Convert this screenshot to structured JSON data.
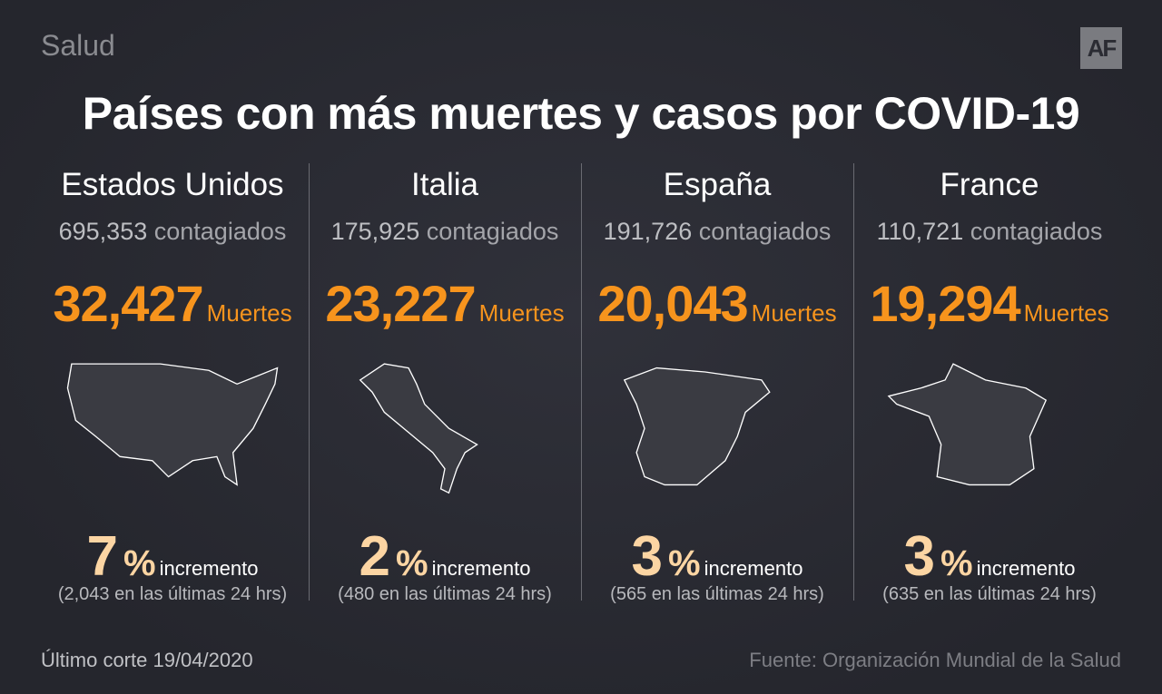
{
  "header": {
    "section": "Salud",
    "logo": "AF",
    "title": "Países con más muertes y casos por COVID-19"
  },
  "countries": [
    {
      "name": "Estados Unidos",
      "cases": "695,353",
      "cases_label": "contagiados",
      "deaths": "32,427",
      "deaths_label": "Muertes",
      "increase": "7",
      "increase_sign": "%",
      "increase_label": "incremento",
      "detail": "(2,043 en las últimas 24 hrs)"
    },
    {
      "name": "Italia",
      "cases": "175,925",
      "cases_label": "contagiados",
      "deaths": "23,227",
      "deaths_label": "Muertes",
      "increase": "2",
      "increase_sign": "%",
      "increase_label": "incremento",
      "detail": "(480 en las últimas 24 hrs)"
    },
    {
      "name": "España",
      "cases": "191,726",
      "cases_label": "contagiados",
      "deaths": "20,043",
      "deaths_label": "Muertes",
      "increase": "3",
      "increase_sign": "%",
      "increase_label": "incremento",
      "detail": "(565 en las últimas 24 hrs)"
    },
    {
      "name": "France",
      "cases": "110,721",
      "cases_label": "contagiados",
      "deaths": "19,294",
      "deaths_label": "Muertes",
      "increase": "3",
      "increase_sign": "%",
      "increase_label": "incremento",
      "detail": "(635 en las últimas 24 hrs)"
    }
  ],
  "footer": {
    "cutoff": "Último corte 19/04/2020",
    "source": "Fuente: Organización Mundial de la Salud"
  }
}
